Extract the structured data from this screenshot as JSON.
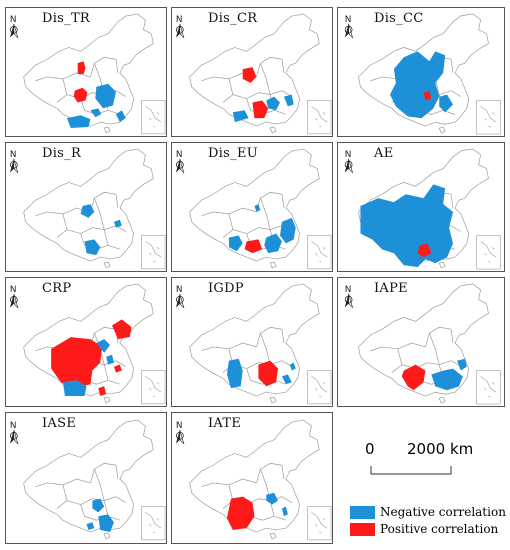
{
  "panels": [
    {
      "id": "dis-tr",
      "title": "Dis_TR"
    },
    {
      "id": "dis-cr",
      "title": "Dis_CR"
    },
    {
      "id": "dis-cc",
      "title": "Dis_CC"
    },
    {
      "id": "dis-r",
      "title": "Dis_R"
    },
    {
      "id": "dis-eu",
      "title": "Dis_EU"
    },
    {
      "id": "ae",
      "title": "AE"
    },
    {
      "id": "crp",
      "title": "CRP"
    },
    {
      "id": "igdp",
      "title": "IGDP"
    },
    {
      "id": "iape",
      "title": "IAPE"
    },
    {
      "id": "iase",
      "title": "IASE"
    },
    {
      "id": "iate",
      "title": "IATE"
    }
  ],
  "north_arrow": {
    "label": "N",
    "icon": "north-arrow-icon"
  },
  "scale_bar": {
    "start_label": "0",
    "end_label": "2000 km"
  },
  "legend": {
    "negative": {
      "label": "Negative correlation",
      "color": "#1e90d8"
    },
    "positive": {
      "label": "Positive correlation",
      "color": "#ff1a1a"
    }
  },
  "colors": {
    "border": "#9a9a9a",
    "frame": "#555555"
  }
}
